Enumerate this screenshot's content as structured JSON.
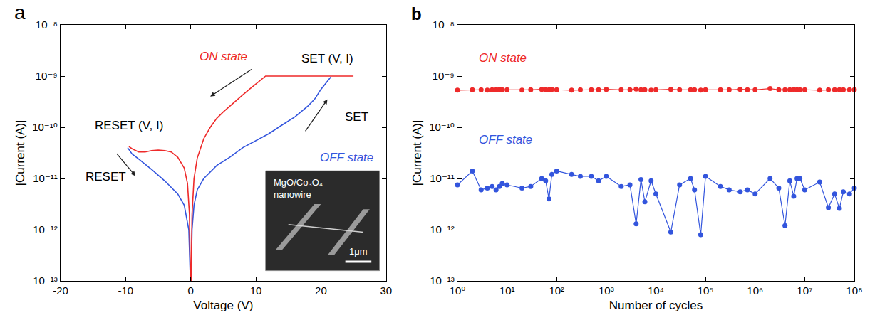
{
  "chart_data": [
    {
      "type": "line",
      "label": "a",
      "x_label": "Voltage (V)",
      "y_label": "|Current (A)|",
      "log": "y",
      "grid": false,
      "xlim": [
        -20,
        30
      ],
      "xticks": [
        -20,
        -10,
        0,
        10,
        20,
        30
      ],
      "ylim": [
        1e-13,
        1e-08
      ],
      "yticks": [
        {
          "value": 1e-13,
          "label": "10⁻¹³"
        },
        {
          "value": 1e-12,
          "label": "10⁻¹²"
        },
        {
          "value": 1e-11,
          "label": "10⁻¹¹"
        },
        {
          "value": 1e-10,
          "label": "10⁻¹⁰"
        },
        {
          "value": 1e-09,
          "label": "10⁻⁹"
        },
        {
          "value": 1e-08,
          "label": "10⁻⁸"
        }
      ],
      "series": [
        {
          "color": "#3355dd",
          "line_style": "solid",
          "x": [
            -9.7,
            -9,
            -8,
            -6,
            -4,
            -2,
            -1,
            -0.3,
            -0.05,
            0.05,
            0.2,
            0.5,
            1,
            2,
            4,
            6,
            8,
            10,
            12,
            14,
            16,
            18,
            19,
            20,
            21,
            21.5
          ],
          "values": [
            4e-11,
            3e-11,
            2.4e-11,
            1.5e-11,
            9e-12,
            5e-12,
            3e-12,
            1e-12,
            1e-13,
            1e-13,
            1e-12,
            3e-12,
            6e-12,
            1e-11,
            1.8e-11,
            2.6e-11,
            4e-11,
            5.5e-11,
            7.5e-11,
            1.1e-10,
            1.6e-10,
            2.6e-10,
            3.5e-10,
            5.5e-10,
            8e-10,
            9.5e-10
          ]
        },
        {
          "color": "#ee2a2a",
          "line_style": "solid",
          "x": [
            -9.5,
            -9,
            -8,
            -7,
            -6,
            -5,
            -4,
            -3,
            -2,
            -1,
            -0.5,
            -0.2,
            -0.05,
            0.05,
            0.2,
            0.5,
            1,
            2,
            3,
            4,
            5,
            6,
            7,
            8,
            9,
            10,
            11,
            11.5,
            25
          ],
          "values": [
            4.2e-11,
            3.8e-11,
            3.3e-11,
            3.3e-11,
            3.5e-11,
            3.6e-11,
            3.5e-11,
            3.3e-11,
            2.6e-11,
            1.6e-11,
            8e-12,
            2e-12,
            1e-13,
            1e-13,
            2e-12,
            1e-11,
            2.5e-11,
            6e-11,
            1e-10,
            1.5e-10,
            2e-10,
            2.6e-10,
            3.3e-10,
            4.3e-10,
            5.5e-10,
            7e-10,
            9e-10,
            1e-09,
            1e-09
          ]
        }
      ],
      "annotations": [
        {
          "text": "ON state",
          "color": "#ee2a2a",
          "style": "italic"
        },
        {
          "text": "SET (V, I)",
          "color": "#000000",
          "style": "normal"
        },
        {
          "text": "SET",
          "color": "#000000",
          "style": "normal"
        },
        {
          "text": "OFF state",
          "color": "#3355dd",
          "style": "italic"
        },
        {
          "text": "RESET (V, I)",
          "color": "#000000",
          "style": "normal"
        },
        {
          "text": "RESET",
          "color": "#000000",
          "style": "normal"
        }
      ],
      "inset": {
        "text": "MgO/Co₃O₄ nanowire",
        "scale_bar": "1μm"
      }
    },
    {
      "type": "line",
      "label": "b",
      "marker": "circle",
      "x_label": "Number of cycles",
      "y_label": "|Current (A)|",
      "log": true,
      "grid": false,
      "xlim": [
        1,
        100000000
      ],
      "xticks": [
        {
          "value": 1,
          "label": "10⁰"
        },
        {
          "value": 10,
          "label": "10¹"
        },
        {
          "value": 100,
          "label": "10²"
        },
        {
          "value": 1000,
          "label": "10³"
        },
        {
          "value": 10000,
          "label": "10⁴"
        },
        {
          "value": 100000,
          "label": "10⁵"
        },
        {
          "value": 1000000,
          "label": "10⁶"
        },
        {
          "value": 10000000,
          "label": "10⁷"
        },
        {
          "value": 100000000,
          "label": "10⁸"
        }
      ],
      "ylim": [
        1e-13,
        1e-08
      ],
      "yticks": [
        {
          "value": 1e-13,
          "label": "10⁻¹³"
        },
        {
          "value": 1e-12,
          "label": "10⁻¹²"
        },
        {
          "value": 1e-11,
          "label": "10⁻¹¹"
        },
        {
          "value": 1e-10,
          "label": "10⁻¹⁰"
        },
        {
          "value": 1e-09,
          "label": "10⁻⁹"
        },
        {
          "value": 1e-08,
          "label": "10⁻⁸"
        }
      ],
      "x": [
        1,
        2,
        3,
        4,
        5,
        6,
        7,
        8,
        10,
        20,
        30,
        50,
        60,
        70,
        80,
        100,
        200,
        300,
        500,
        700,
        1000,
        2000,
        3000,
        4000,
        5000,
        6000,
        8000,
        10000,
        20000,
        30000,
        50000,
        60000,
        80000,
        100000,
        200000,
        300000,
        500000,
        700000,
        1000000,
        2000000,
        3000000,
        4000000,
        5000000,
        6000000,
        7000000,
        8000000,
        10000000,
        20000000,
        30000000,
        40000000,
        50000000,
        60000000,
        80000000,
        100000000
      ],
      "series": [
        {
          "color": "#ee2a2a",
          "values": [
            5.3e-10,
            5.4e-10,
            5.4e-10,
            5.3e-10,
            5.4e-10,
            5.4e-10,
            5.5e-10,
            5.4e-10,
            5.4e-10,
            5.3e-10,
            5.4e-10,
            5.5e-10,
            5.4e-10,
            5.4e-10,
            5.5e-10,
            5.4e-10,
            5.3e-10,
            5.4e-10,
            5.4e-10,
            5.4e-10,
            5.5e-10,
            5.4e-10,
            5.4e-10,
            5.6e-10,
            5.4e-10,
            5.4e-10,
            5.3e-10,
            5.4e-10,
            5.5e-10,
            5.4e-10,
            5.4e-10,
            5.4e-10,
            5.3e-10,
            5.4e-10,
            5.4e-10,
            5.4e-10,
            5.5e-10,
            5.4e-10,
            5.4e-10,
            5.7e-10,
            5.4e-10,
            5.4e-10,
            5.4e-10,
            5.5e-10,
            5.4e-10,
            5.4e-10,
            5.4e-10,
            5.3e-10,
            5.4e-10,
            5.4e-10,
            5.4e-10,
            5.4e-10,
            5.4e-10,
            5.4e-10
          ]
        },
        {
          "color": "#3355dd",
          "values": [
            7.5e-12,
            1.4e-11,
            6e-12,
            6.5e-12,
            7e-12,
            6e-12,
            7e-12,
            8e-12,
            7.5e-12,
            6.5e-12,
            7e-12,
            1e-11,
            9e-12,
            4e-12,
            1.2e-11,
            1.4e-11,
            1.2e-11,
            1.1e-11,
            1.1e-11,
            9e-12,
            1.1e-11,
            7e-12,
            7.5e-12,
            1.3e-12,
            9.5e-12,
            3.5e-12,
            9e-12,
            5e-12,
            9e-13,
            7.5e-12,
            1e-11,
            6e-12,
            8e-13,
            1.1e-11,
            7e-12,
            6e-12,
            5.5e-12,
            6e-12,
            5e-12,
            1e-11,
            6.5e-12,
            1.2e-12,
            9e-12,
            4.5e-12,
            1e-11,
            1e-11,
            6e-12,
            8.5e-12,
            2.7e-12,
            5e-12,
            2.6e-12,
            5.5e-12,
            5e-12,
            6.5e-12
          ]
        }
      ],
      "annotations": [
        {
          "text": "ON state",
          "color": "#ee2a2a",
          "style": "italic"
        },
        {
          "text": "OFF state",
          "color": "#3355dd",
          "style": "italic"
        }
      ]
    }
  ]
}
